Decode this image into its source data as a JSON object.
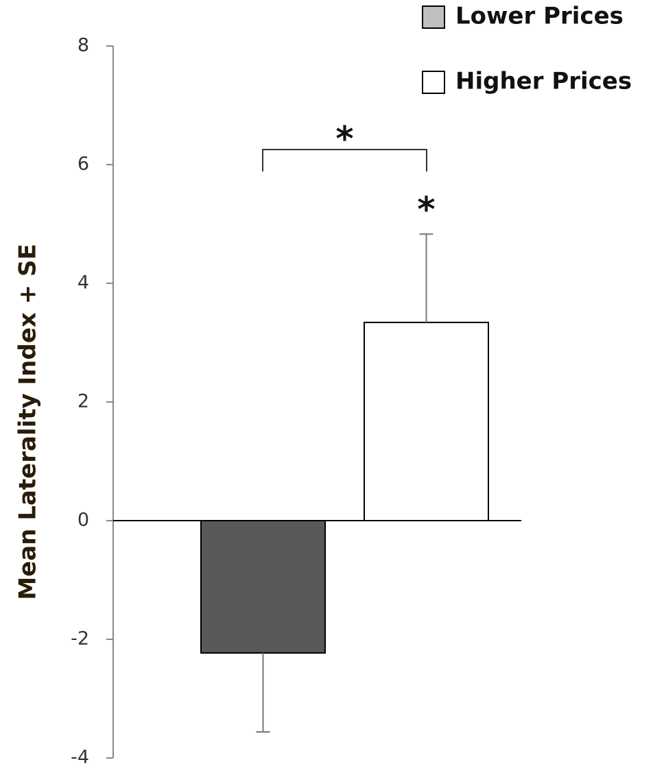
{
  "chart_data": {
    "type": "bar",
    "y_label": "Mean Laterality Index + SE",
    "ylim": [
      -4,
      8
    ],
    "yticks": [
      -4,
      -2,
      0,
      2,
      4,
      6,
      8
    ],
    "legend": "top-right",
    "series": [
      {
        "name": "Lower Prices",
        "color": "#595959",
        "values": [
          -2.23
        ],
        "errors": [
          1.33
        ]
      },
      {
        "name": "Higher Prices",
        "color": "#ffffff",
        "values": [
          3.34
        ],
        "errors": [
          1.49
        ]
      }
    ],
    "annotations": [
      {
        "text": "*",
        "between": [
          "Lower Prices",
          "Higher Prices"
        ]
      },
      {
        "text": "*",
        "on": "Higher Prices"
      }
    ]
  }
}
